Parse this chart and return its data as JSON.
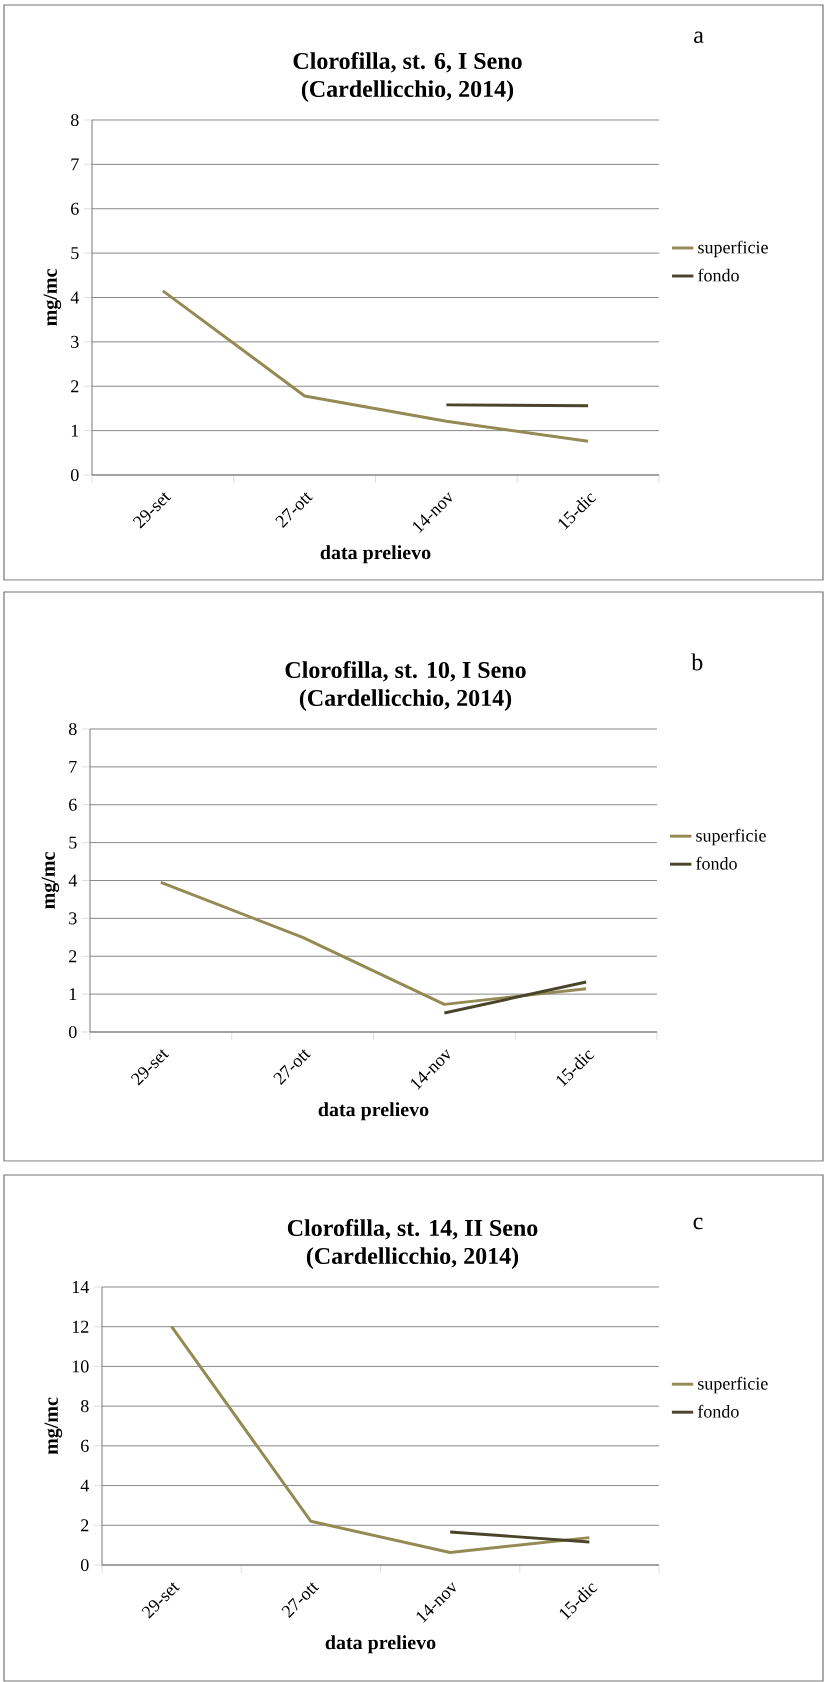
{
  "chart_data": [
    {
      "type": "line",
      "title": "Clorofilla, st. 6, I Seno",
      "subtitle": "(Cardellicchio, 2014)",
      "annotations": [
        "a"
      ],
      "xlabel": "data prelievo",
      "ylabel": "mg/mc",
      "categories": [
        "29-set",
        "27-ott",
        "14-nov",
        "15-dic"
      ],
      "ylim": [
        0,
        8
      ],
      "yticks": [
        0,
        1,
        2,
        3,
        4,
        5,
        6,
        7,
        8
      ],
      "grid": "y",
      "legend": "right",
      "marker": "none",
      "line_style": "solid",
      "series": [
        {
          "name": "superficie",
          "color": "#948a54",
          "values": [
            4.15,
            1.78,
            1.21,
            0.76
          ]
        },
        {
          "name": "fondo",
          "color": "#4a452a",
          "values": [
            null,
            null,
            1.58,
            1.56
          ]
        }
      ]
    },
    {
      "type": "line",
      "title": "Clorofilla, st. 10, I Seno",
      "subtitle": "(Cardellicchio, 2014)",
      "annotations": [
        "b"
      ],
      "xlabel": "data prelievo",
      "ylabel": "mg/mc",
      "categories": [
        "29-set",
        "27-ott",
        "14-nov",
        "15-dic"
      ],
      "ylim": [
        0,
        8
      ],
      "yticks": [
        0,
        1,
        2,
        3,
        4,
        5,
        6,
        7,
        8
      ],
      "grid": "y",
      "legend": "right",
      "marker": "none",
      "line_style": "solid",
      "series": [
        {
          "name": "superficie",
          "color": "#948a54",
          "values": [
            3.95,
            2.5,
            0.73,
            1.14
          ]
        },
        {
          "name": "fondo",
          "color": "#4a452a",
          "values": [
            null,
            null,
            0.5,
            1.32
          ]
        }
      ]
    },
    {
      "type": "line",
      "title": "Clorofilla, st. 14, II Seno",
      "subtitle": "(Cardellicchio, 2014)",
      "annotations": [
        "c"
      ],
      "xlabel": "data prelievo",
      "ylabel": "mg/mc",
      "categories": [
        "29-set",
        "27-ott",
        "14-nov",
        "15-dic"
      ],
      "ylim": [
        0,
        14
      ],
      "yticks": [
        0,
        2,
        4,
        6,
        8,
        10,
        12,
        14
      ],
      "grid": "y",
      "legend": "right",
      "marker": "none",
      "line_style": "solid",
      "series": [
        {
          "name": "superficie",
          "color": "#948a54",
          "values": [
            12.0,
            2.2,
            0.63,
            1.38
          ]
        },
        {
          "name": "fondo",
          "color": "#4a452a",
          "values": [
            null,
            null,
            1.66,
            1.16
          ]
        }
      ]
    }
  ]
}
